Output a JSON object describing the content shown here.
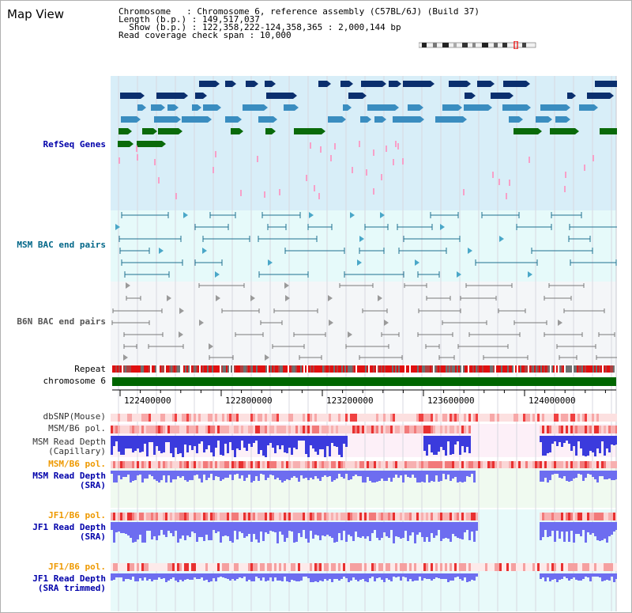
{
  "page": {
    "title": "Map View"
  },
  "info": {
    "chromosome_label": "Chromosome",
    "chromosome_value": "Chromosome 6, reference assembly (C57BL/6J) (Build 37)",
    "length_label": "Length (b.p.)",
    "length_value": "149,517,037",
    "show_label": "Show (b.p.)",
    "show_value": "122,358,222-124,358,365 : 2,000,144 bp",
    "coverage_label": "Read coverage check span",
    "coverage_value": "10,000"
  },
  "tracks": {
    "refseq": "RefSeq Genes",
    "msm_bac": "MSM BAC end pairs",
    "b6n_bac": "B6N BAC end pairs",
    "repeat": "Repeat",
    "chromosome": "chromosome 6",
    "dbsnp": "dbSNP(Mouse)",
    "msm_b6_pol_1": "MSM/B6 pol.",
    "msm_read_depth_cap_1": "MSM Read Depth",
    "msm_read_depth_cap_2": "(Capillary)",
    "msm_b6_pol_2": "MSM/B6 pol.",
    "msm_read_depth_sra_1": "MSM Read Depth",
    "msm_read_depth_sra_2": "(SRA)",
    "jf1_b6_pol_1": "JF1/B6 pol.",
    "jf1_read_depth_sra_1": "JF1 Read Depth",
    "jf1_read_depth_sra_2": "(SRA)",
    "jf1_b6_pol_2": "JF1/B6 pol.",
    "jf1_read_depth_trim_1": "JF1 Read Depth",
    "jf1_read_depth_trim_2": "(SRA trimmed)"
  },
  "axis": {
    "ticks": [
      "122400000",
      "122800000",
      "123200000",
      "123600000",
      "124000000"
    ]
  },
  "colors": {
    "refseq_bg": "#d8eef8",
    "msm_bac_bg": "#e6fafa",
    "b6n_bac_bg": "#f4f6f8",
    "gene_navy": "#0b2f6e",
    "gene_steel": "#3a8dc0",
    "gene_green": "#0a6a0a",
    "chromosome_green": "#006600",
    "depth_blue": "#3b3bdd",
    "depth_violet": "#6d6df0"
  }
}
